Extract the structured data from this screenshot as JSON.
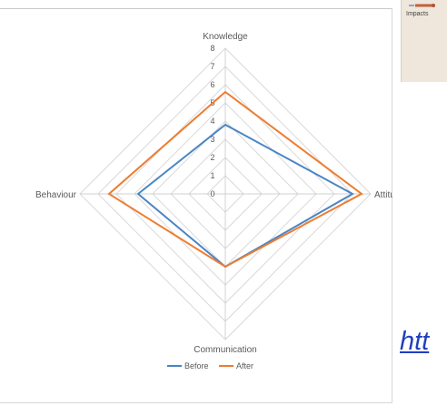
{
  "chart_data": {
    "type": "radar",
    "axes": [
      "Knowledge",
      "Attitude",
      "Communication",
      "Behaviour"
    ],
    "r_range": [
      0,
      8
    ],
    "r_ticks": [
      "0",
      "1",
      "2",
      "3",
      "4",
      "5",
      "6",
      "7",
      "8"
    ],
    "grid": true,
    "legend_position": "bottom",
    "series": [
      {
        "name": "Before",
        "color": "#4a86c6",
        "values": [
          3.8,
          7.0,
          4.0,
          4.8
        ]
      },
      {
        "name": "After",
        "color": "#ed7d31",
        "values": [
          5.6,
          7.5,
          4.0,
          6.4
        ]
      }
    ]
  },
  "thumbnail": {
    "label": "Impacts"
  },
  "link": {
    "text": "htt"
  }
}
